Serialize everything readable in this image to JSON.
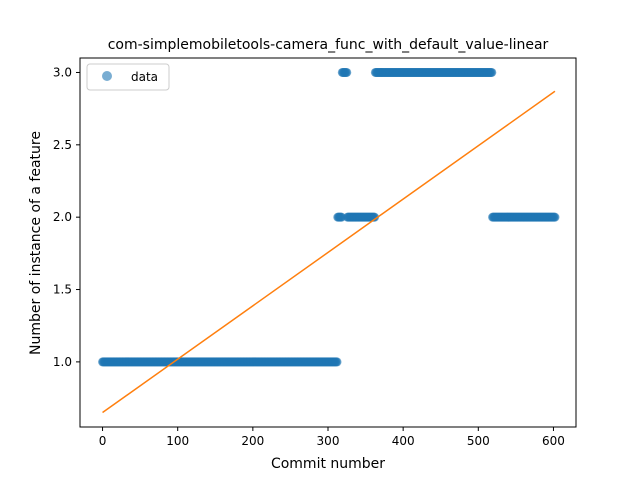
{
  "chart_data": {
    "type": "scatter",
    "title": "com-simplemobiletools-camera_func_with_default_value-linear",
    "xlabel": "Commit number",
    "ylabel": "Number of instance of a feature",
    "xlim": [
      -30,
      630
    ],
    "ylim": [
      0.55,
      3.1
    ],
    "xticks": [
      0,
      100,
      200,
      300,
      400,
      500,
      600
    ],
    "xtick_labels": [
      "0",
      "100",
      "200",
      "300",
      "400",
      "500",
      "600"
    ],
    "yticks": [
      1.0,
      1.5,
      2.0,
      2.5,
      3.0
    ],
    "ytick_labels": [
      "1.0",
      "1.5",
      "2.0",
      "2.5",
      "3.0"
    ],
    "grid": false,
    "legend_position": "top-left",
    "series": [
      {
        "name": "data",
        "kind": "points",
        "color": "#1f77b4",
        "segments": [
          {
            "x_start": 0,
            "x_end": 312,
            "y": 1.0
          },
          {
            "x_start": 313,
            "x_end": 318,
            "y": 2.0
          },
          {
            "x_start": 319,
            "x_end": 325,
            "y": 3.0
          },
          {
            "x_start": 326,
            "x_end": 362,
            "y": 2.0
          },
          {
            "x_start": 363,
            "x_end": 518,
            "y": 3.0
          },
          {
            "x_start": 519,
            "x_end": 602,
            "y": 2.0
          }
        ]
      },
      {
        "kind": "line",
        "color": "#ff7f0e",
        "x": [
          0,
          602
        ],
        "y": [
          0.65,
          2.87
        ]
      }
    ]
  }
}
